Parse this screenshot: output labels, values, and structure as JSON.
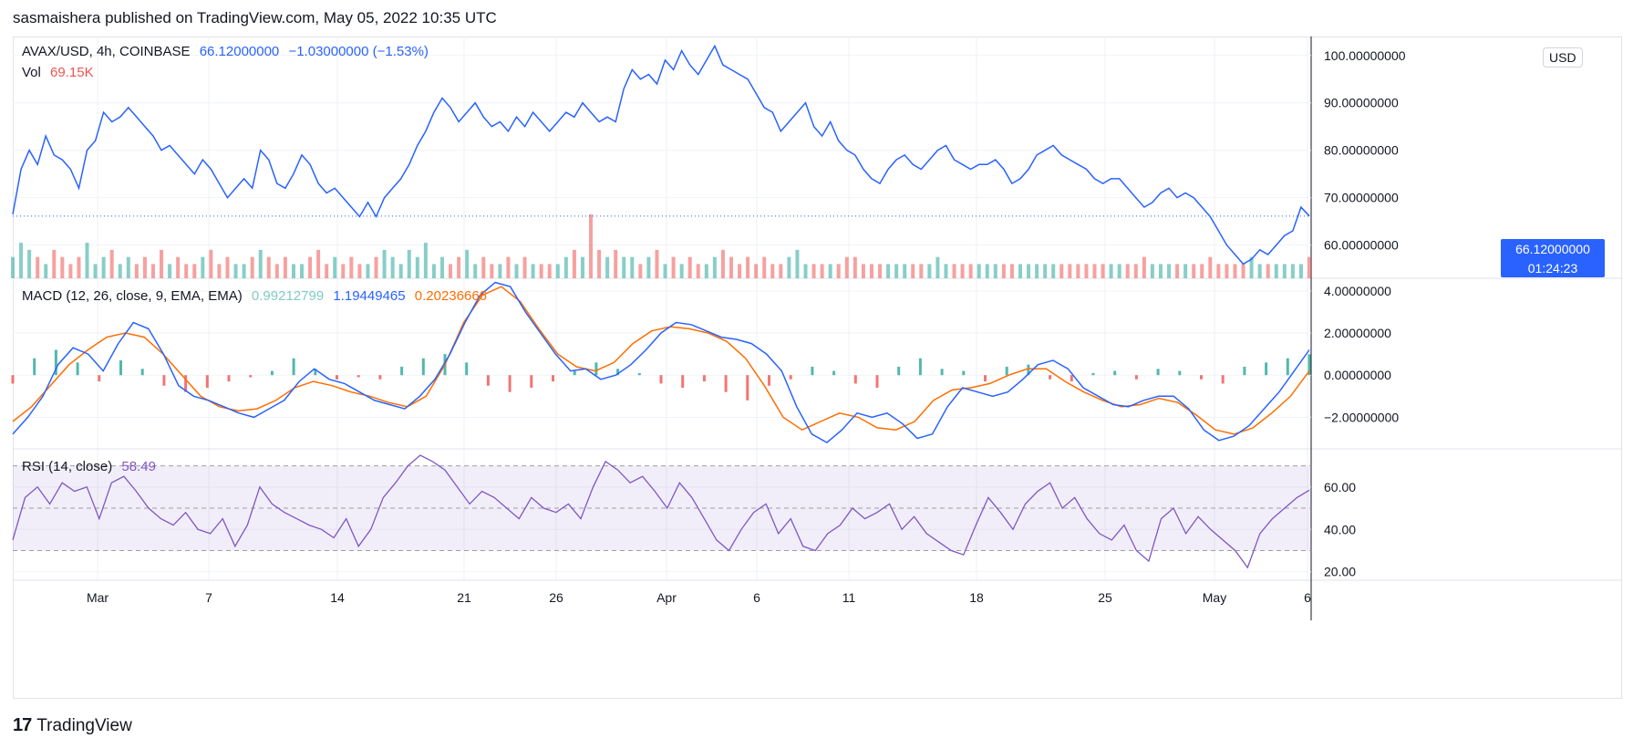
{
  "header": {
    "text": "sasmaishera published on TradingView.com, May 05, 2022 10:35 UTC"
  },
  "footer": {
    "brand": "TradingView",
    "mark": "17"
  },
  "legend": {
    "symbol": "AVAX/USD, 4h, COINBASE",
    "price": "66.12000000",
    "change": "−1.03000000 (−1.53%)",
    "vol_label": "Vol",
    "vol_value": "69.15K",
    "macd_label": "MACD (12, 26, close, 9, EMA, EMA)",
    "macd_hist": "0.99212799",
    "macd_line": "1.19449465",
    "macd_signal": "0.20236666",
    "rsi_label": "RSI (14, close)",
    "rsi_value": "58.49"
  },
  "price_axis": {
    "currency": "USD",
    "last_price": "66.12000000",
    "countdown": "01:24:23"
  },
  "colors": {
    "price_line": "#2962ff",
    "price_tag": "#2962ff",
    "vol_up": "#26a69a",
    "vol_down": "#ef5350",
    "macd_line": "#2962ff",
    "signal_line": "#ff6d00",
    "rsi_line": "#7e57c2",
    "rsi_band": "#7e57c2"
  },
  "chart_data": {
    "type": "line",
    "x_ticks": [
      "Mar",
      "7",
      "14",
      "21",
      "26",
      "Apr",
      "6",
      "11",
      "18",
      "25",
      "May",
      "6"
    ],
    "panels": [
      {
        "name": "price",
        "y_ticks": [
          "100.00000000",
          "90.00000000",
          "80.00000000",
          "70.00000000",
          "60.00000000"
        ],
        "ylim": [
          53,
          104
        ],
        "series": [
          {
            "name": "AVAX/USD",
            "values": [
              66.5,
              76,
              80,
              77,
              83,
              79,
              78,
              76,
              72,
              80,
              82,
              88,
              86,
              87,
              89,
              87,
              85,
              83,
              80,
              81,
              79,
              77,
              75,
              78,
              76,
              73,
              70,
              72,
              74,
              72,
              80,
              78,
              73,
              72,
              75,
              79,
              77,
              73,
              71,
              72,
              70,
              68,
              66,
              69,
              66,
              70,
              72,
              74,
              77,
              81,
              84,
              88,
              91,
              89,
              86,
              88,
              90,
              87,
              85,
              86,
              84,
              87,
              85,
              88,
              86,
              84,
              86,
              88,
              87,
              90,
              88,
              86,
              87,
              86,
              93,
              97,
              95,
              96,
              94,
              99,
              97,
              101,
              98,
              96,
              99,
              102,
              98,
              97,
              96,
              95,
              92,
              89,
              88,
              84,
              86,
              88,
              90,
              85,
              83,
              86,
              82,
              80,
              79,
              76,
              74,
              73,
              76,
              78,
              79,
              77,
              76,
              78,
              80,
              81,
              78,
              77,
              76,
              77,
              77,
              78,
              76,
              73,
              74,
              76,
              79,
              80,
              81,
              79,
              78,
              77,
              76,
              74,
              73,
              74,
              74,
              72,
              70,
              68,
              69,
              71,
              72,
              70,
              71,
              70,
              68,
              66,
              63,
              60,
              58,
              56,
              57,
              59,
              58,
              60,
              62,
              63,
              68,
              66.12
            ]
          },
          {
            "name": "Vol",
            "values": [
              3,
              5,
              4,
              3,
              2,
              4,
              3,
              2,
              3,
              5,
              2,
              3,
              4,
              2,
              3,
              2,
              3,
              2,
              4,
              2,
              3,
              2,
              2,
              3,
              4,
              2,
              3,
              2,
              2,
              3,
              4,
              3,
              2,
              3,
              2,
              2,
              3,
              4,
              2,
              3,
              2,
              3,
              2,
              2,
              3,
              4,
              3,
              2,
              4,
              3,
              5,
              2,
              3,
              2,
              3,
              4,
              2,
              3,
              2,
              2,
              3,
              2,
              3,
              2,
              2,
              2,
              2,
              3,
              4,
              3,
              9,
              4,
              3,
              4,
              3,
              3,
              2,
              3,
              4,
              2,
              3,
              2,
              3,
              2,
              2,
              3,
              4,
              3,
              2,
              3,
              2,
              3,
              2,
              2,
              3,
              4,
              2,
              2,
              2,
              2,
              2,
              3,
              3,
              2,
              2,
              2,
              2,
              2,
              2,
              2,
              2,
              2,
              3,
              2,
              2,
              2,
              2,
              2,
              2,
              2,
              2,
              2,
              2,
              2,
              2,
              2,
              2,
              2,
              2,
              2,
              2,
              2,
              2,
              2,
              2,
              2,
              2,
              3,
              2,
              2,
              2,
              2,
              2,
              2,
              2,
              3,
              2,
              2,
              2,
              2,
              3,
              2,
              2,
              2,
              2,
              2,
              2,
              3
            ]
          }
        ]
      },
      {
        "name": "MACD",
        "y_ticks": [
          "4.00000000",
          "2.00000000",
          "0.00000000",
          "−2.00000000"
        ],
        "ylim": [
          -3.5,
          4.6
        ],
        "series": [
          {
            "name": "MACD",
            "values": [
              -2.8,
              -2,
              -1,
              0.5,
              1.3,
              1,
              0.2,
              1.5,
              2.5,
              2.2,
              1,
              -0.5,
              -1,
              -1.2,
              -1.5,
              -1.8,
              -2,
              -1.6,
              -1.2,
              -0.3,
              0.3,
              -0.2,
              -0.4,
              -0.8,
              -1.2,
              -1.4,
              -1.6,
              -1,
              -0.2,
              1,
              2.5,
              3.8,
              4.4,
              4.2,
              3,
              2,
              1,
              0.2,
              0.3,
              -0.2,
              0,
              0.5,
              1.2,
              2,
              2.5,
              2.4,
              2.1,
              1.8,
              1.7,
              1.5,
              1,
              0.2,
              -1.5,
              -2.8,
              -3.2,
              -2.6,
              -1.8,
              -2,
              -1.8,
              -2.3,
              -3,
              -2.8,
              -1.5,
              -0.6,
              -0.8,
              -1,
              -0.8,
              -0.2,
              0.5,
              0.7,
              0.3,
              -0.6,
              -1,
              -1.4,
              -1.5,
              -1.2,
              -1,
              -1,
              -1.6,
              -2.6,
              -3.1,
              -2.9,
              -2.4,
              -1.6,
              -0.8,
              0.2,
              1.2
            ]
          },
          {
            "name": "Signal",
            "values": [
              -2.2,
              -1.5,
              -0.5,
              0.5,
              1.2,
              1.8,
              2,
              1.8,
              1,
              0,
              -1,
              -1.5,
              -1.7,
              -1.6,
              -1.2,
              -0.6,
              -0.3,
              -0.5,
              -0.8,
              -1,
              -1.3,
              -1.5,
              -1,
              0.5,
              2.5,
              3.8,
              4.2,
              3.5,
              2.2,
              1,
              0.4,
              0.2,
              0.6,
              1.5,
              2.1,
              2.3,
              2.2,
              2,
              1.6,
              0.8,
              -0.5,
              -2,
              -2.6,
              -2.2,
              -1.8,
              -2,
              -2.5,
              -2.6,
              -2.2,
              -1.2,
              -0.7,
              -0.6,
              -0.4,
              0,
              0.3,
              0.3,
              -0.3,
              -0.8,
              -1.2,
              -1.5,
              -1.4,
              -1.1,
              -1.3,
              -1.9,
              -2.6,
              -2.8,
              -2.5,
              -1.8,
              -1,
              0.2
            ]
          },
          {
            "name": "Histogram",
            "values": [
              -0.4,
              0.8,
              1.2,
              0.6,
              -0.3,
              0.7,
              0.3,
              -0.5,
              -0.8,
              -0.6,
              -0.3,
              -0.1,
              0.2,
              0.8,
              0.3,
              -0.2,
              -0.1,
              -0.2,
              0.4,
              0.8,
              1,
              0.6,
              -0.5,
              -0.8,
              -0.6,
              -0.3,
              0.2,
              0.6,
              0.3,
              0.1,
              -0.4,
              -0.6,
              -0.3,
              -0.8,
              -1.2,
              -0.5,
              -0.2,
              0.4,
              0.2,
              -0.4,
              -0.6,
              0.4,
              0.8,
              0.3,
              0.2,
              -0.3,
              0.4,
              0.5,
              -0.2,
              -0.3,
              0.1,
              0.2,
              -0.2,
              0.3,
              0.2,
              -0.2,
              -0.4,
              0.4,
              0.6,
              0.8,
              0.99
            ]
          }
        ]
      },
      {
        "name": "RSI",
        "y_ticks": [
          "60.00",
          "40.00",
          "20.00"
        ],
        "ylim": [
          16,
          78
        ],
        "band": [
          30,
          70
        ],
        "series": [
          {
            "name": "RSI",
            "values": [
              35,
              55,
              60,
              52,
              62,
              58,
              60,
              45,
              62,
              65,
              58,
              50,
              45,
              42,
              48,
              40,
              38,
              45,
              32,
              42,
              60,
              52,
              48,
              45,
              42,
              40,
              36,
              45,
              32,
              40,
              55,
              62,
              70,
              75,
              72,
              68,
              60,
              52,
              58,
              55,
              50,
              45,
              55,
              50,
              48,
              52,
              45,
              60,
              72,
              68,
              62,
              65,
              58,
              50,
              62,
              55,
              45,
              35,
              30,
              40,
              48,
              52,
              38,
              45,
              32,
              30,
              38,
              42,
              50,
              45,
              48,
              52,
              40,
              46,
              38,
              34,
              30,
              28,
              42,
              55,
              48,
              40,
              52,
              58,
              62,
              50,
              55,
              45,
              38,
              35,
              42,
              30,
              25,
              45,
              50,
              38,
              46,
              40,
              35,
              30,
              22,
              38,
              45,
              50,
              55,
              58.49
            ]
          }
        ]
      }
    ]
  }
}
